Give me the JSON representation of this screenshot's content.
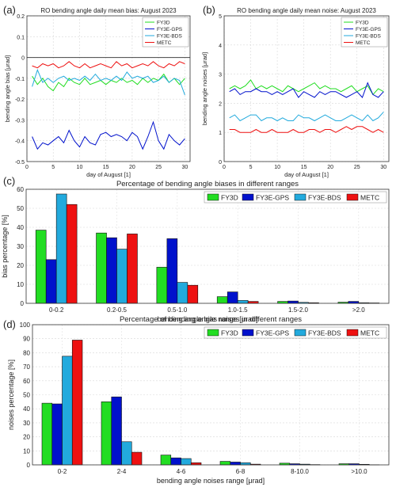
{
  "panel_labels": [
    "(a)",
    "(b)",
    "(c)",
    "(d)"
  ],
  "colors": {
    "FY3D": "#22dd22",
    "FY3E-GPS": "#0011cc",
    "FY3E-BDS": "#22aadd",
    "METC": "#ee1111"
  },
  "chart_data": [
    {
      "type": "line",
      "title": "RO bending angle daily mean bias: August 2023",
      "xlabel": "day of August [1]",
      "ylabel": "bending angle bias [μrad]",
      "xlim": [
        0,
        31
      ],
      "ylim": [
        -0.5,
        0.2
      ],
      "xticks": [
        0,
        5,
        10,
        15,
        20,
        25,
        30
      ],
      "yticks": [
        -0.5,
        -0.4,
        -0.3,
        -0.2,
        -0.1,
        0,
        0.1,
        0.2
      ],
      "ytick_labels": [
        "-0.5",
        "-0.4",
        "-0.3",
        "-0.2",
        "-0.1",
        "0",
        "0.1",
        "0.2"
      ],
      "reference_line": 0,
      "grid": true,
      "legend_position": "top-right",
      "x": [
        1,
        2,
        3,
        4,
        5,
        6,
        7,
        8,
        9,
        10,
        11,
        12,
        13,
        14,
        15,
        16,
        17,
        18,
        19,
        20,
        21,
        22,
        23,
        24,
        25,
        26,
        27,
        28,
        29,
        30
      ],
      "series": [
        {
          "name": "FY3D",
          "values": [
            -0.09,
            -0.13,
            -0.1,
            -0.14,
            -0.16,
            -0.12,
            -0.14,
            -0.1,
            -0.12,
            -0.13,
            -0.1,
            -0.13,
            -0.12,
            -0.11,
            -0.13,
            -0.11,
            -0.12,
            -0.1,
            -0.12,
            -0.11,
            -0.13,
            -0.1,
            -0.12,
            -0.1,
            -0.11,
            -0.08,
            -0.12,
            -0.1,
            -0.13,
            -0.1
          ]
        },
        {
          "name": "FY3E-GPS",
          "values": [
            -0.38,
            -0.44,
            -0.41,
            -0.42,
            -0.4,
            -0.38,
            -0.41,
            -0.35,
            -0.4,
            -0.43,
            -0.38,
            -0.41,
            -0.42,
            -0.37,
            -0.36,
            -0.38,
            -0.37,
            -0.38,
            -0.4,
            -0.36,
            -0.38,
            -0.44,
            -0.38,
            -0.31,
            -0.4,
            -0.44,
            -0.37,
            -0.4,
            -0.42,
            -0.39
          ]
        },
        {
          "name": "FY3E-BDS",
          "values": [
            -0.14,
            -0.06,
            -0.12,
            -0.1,
            -0.12,
            -0.1,
            -0.09,
            -0.11,
            -0.1,
            -0.11,
            -0.09,
            -0.11,
            -0.08,
            -0.11,
            -0.1,
            -0.11,
            -0.09,
            -0.11,
            -0.07,
            -0.1,
            -0.09,
            -0.1,
            -0.09,
            -0.12,
            -0.11,
            -0.09,
            -0.12,
            -0.1,
            -0.11,
            -0.18
          ]
        },
        {
          "name": "METC",
          "values": [
            -0.04,
            -0.05,
            -0.03,
            -0.04,
            -0.03,
            -0.05,
            -0.04,
            -0.02,
            -0.04,
            -0.05,
            -0.03,
            -0.05,
            -0.04,
            -0.03,
            -0.04,
            -0.05,
            -0.02,
            -0.04,
            -0.03,
            -0.05,
            -0.04,
            -0.03,
            -0.04,
            -0.02,
            -0.04,
            -0.05,
            -0.03,
            -0.04,
            -0.02,
            -0.03
          ]
        }
      ]
    },
    {
      "type": "line",
      "title": "RO bending angle daily mean noise: August 2023",
      "xlabel": "day of August [1]",
      "ylabel": "bending angle noises [μrad]",
      "xlim": [
        0,
        31
      ],
      "ylim": [
        0,
        5
      ],
      "xticks": [
        0,
        5,
        10,
        15,
        20,
        25,
        30
      ],
      "yticks": [
        0,
        1,
        2,
        3,
        4,
        5
      ],
      "ytick_labels": [
        "0",
        "1",
        "2",
        "3",
        "4",
        "5"
      ],
      "grid": true,
      "legend_position": "top-right",
      "x": [
        1,
        2,
        3,
        4,
        5,
        6,
        7,
        8,
        9,
        10,
        11,
        12,
        13,
        14,
        15,
        16,
        17,
        18,
        19,
        20,
        21,
        22,
        23,
        24,
        25,
        26,
        27,
        28,
        29,
        30
      ],
      "series": [
        {
          "name": "FY3D",
          "values": [
            2.5,
            2.6,
            2.5,
            2.6,
            2.8,
            2.5,
            2.6,
            2.5,
            2.6,
            2.5,
            2.4,
            2.6,
            2.5,
            2.4,
            2.5,
            2.6,
            2.7,
            2.5,
            2.6,
            2.5,
            2.5,
            2.4,
            2.5,
            2.6,
            2.4,
            2.5,
            2.6,
            2.3,
            2.5,
            2.4
          ]
        },
        {
          "name": "FY3E-GPS",
          "values": [
            2.4,
            2.5,
            2.3,
            2.4,
            2.4,
            2.5,
            2.4,
            2.4,
            2.3,
            2.4,
            2.3,
            2.4,
            2.5,
            2.2,
            2.4,
            2.3,
            2.2,
            2.4,
            2.3,
            2.4,
            2.4,
            2.3,
            2.2,
            2.3,
            2.4,
            2.2,
            2.7,
            2.3,
            2.2,
            2.4
          ]
        },
        {
          "name": "FY3E-BDS",
          "values": [
            1.5,
            1.6,
            1.4,
            1.5,
            1.6,
            1.6,
            1.4,
            1.5,
            1.5,
            1.4,
            1.5,
            1.4,
            1.4,
            1.6,
            1.5,
            1.5,
            1.4,
            1.5,
            1.6,
            1.5,
            1.4,
            1.4,
            1.5,
            1.6,
            1.5,
            1.4,
            1.6,
            1.4,
            1.5,
            1.7
          ]
        },
        {
          "name": "METC",
          "values": [
            1.1,
            1.1,
            1.0,
            1.0,
            1.0,
            1.1,
            1.0,
            1.0,
            1.1,
            1.0,
            1.0,
            1.0,
            1.1,
            1.0,
            1.0,
            1.1,
            1.1,
            1.0,
            1.1,
            1.1,
            1.0,
            1.1,
            1.2,
            1.1,
            1.2,
            1.2,
            1.1,
            1.0,
            1.1,
            1.0
          ]
        }
      ]
    },
    {
      "type": "bar",
      "title": "Percentage of bending angle biases in different ranges",
      "xlabel": "bending angle bias range [μrad]",
      "ylabel": "bias percentage [%]",
      "ylim": [
        0,
        60
      ],
      "yticks": [
        0,
        10,
        20,
        30,
        40,
        50,
        60
      ],
      "grid": true,
      "legend_position": "top-right",
      "categories": [
        "0-0.2",
        "0.2-0.5",
        "0.5-1.0",
        "1.0-1.5",
        "1.5-2.0",
        ">2.0"
      ],
      "series": [
        {
          "name": "FY3D",
          "values": [
            38.5,
            37,
            19,
            3.5,
            1,
            0.6
          ]
        },
        {
          "name": "FY3E-GPS",
          "values": [
            23,
            34.5,
            34,
            6,
            1.2,
            1
          ]
        },
        {
          "name": "FY3E-BDS",
          "values": [
            57.5,
            28.5,
            11,
            1.5,
            0.5,
            0.3
          ]
        },
        {
          "name": "METC",
          "values": [
            52,
            36.5,
            9.5,
            1,
            0.3,
            0.2
          ]
        }
      ]
    },
    {
      "type": "bar",
      "title": "Percentage of bending angle noises in different ranges",
      "xlabel": "bending angle noises range [μrad]",
      "ylabel": "noises percentage [%]",
      "ylim": [
        0,
        100
      ],
      "yticks": [
        0,
        10,
        20,
        30,
        40,
        50,
        60,
        70,
        80,
        90,
        100
      ],
      "grid": true,
      "legend_position": "top-right",
      "categories": [
        "0-2",
        "2-4",
        "4-6",
        "6-8",
        "8-10.0",
        ">10.0"
      ],
      "series": [
        {
          "name": "FY3D",
          "values": [
            44,
            45,
            7,
            2.5,
            1.2,
            0.8
          ]
        },
        {
          "name": "FY3E-GPS",
          "values": [
            43.5,
            48.5,
            5,
            2,
            0.8,
            0.8
          ]
        },
        {
          "name": "FY3E-BDS",
          "values": [
            77.5,
            16.5,
            4.5,
            1.5,
            0.5,
            0.4
          ]
        },
        {
          "name": "METC",
          "values": [
            89,
            9,
            1.5,
            0.5,
            0.2,
            0.1
          ]
        }
      ]
    }
  ]
}
